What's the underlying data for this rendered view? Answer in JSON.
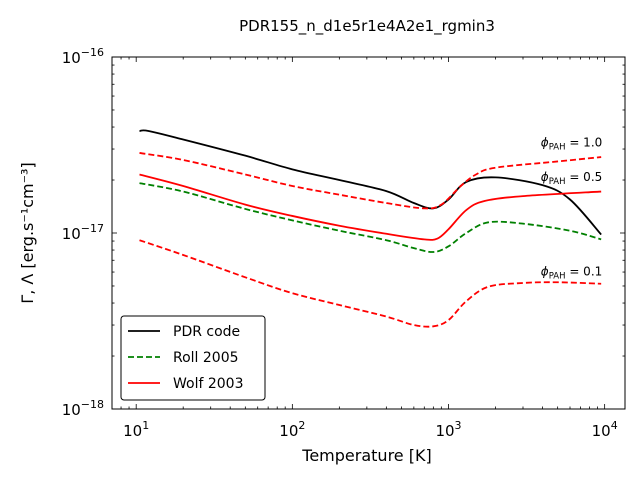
{
  "chart_data": {
    "type": "line",
    "title": "PDR155_n_d1e5r1e4A2e1_rgmin3",
    "xlabel": "Temperature [K]",
    "ylabel": "Γ, Λ [erg.s⁻¹cm⁻³]",
    "x_scale": "log",
    "y_scale": "log",
    "xlim": [
      7,
      13500
    ],
    "ylim": [
      1e-18,
      1e-16
    ],
    "x_ticks": [
      {
        "value": 10,
        "base": "10",
        "exp": "1"
      },
      {
        "value": 100,
        "base": "10",
        "exp": "2"
      },
      {
        "value": 1000,
        "base": "10",
        "exp": "3"
      },
      {
        "value": 10000,
        "base": "10",
        "exp": "4"
      }
    ],
    "y_ticks": [
      {
        "value": 1e-18,
        "base": "10",
        "exp": "−18"
      },
      {
        "value": 1e-17,
        "base": "10",
        "exp": "−17"
      },
      {
        "value": 1e-16,
        "base": "10",
        "exp": "−16"
      }
    ],
    "grid": false,
    "legend": {
      "position": "lower-left",
      "entries": [
        {
          "label": "PDR code",
          "color": "#000000",
          "style": "solid"
        },
        {
          "label": "Roll 2005",
          "color": "#008000",
          "style": "dashed"
        },
        {
          "label": "Wolf 2003",
          "color": "#ff0000",
          "style": "solid"
        }
      ]
    },
    "annotations": [
      {
        "prefix": "ϕ",
        "sub": "PAH",
        "text": " = 1.0",
        "x": 3900,
        "y": 3.1e-17
      },
      {
        "prefix": "ϕ",
        "sub": "PAH",
        "text": " = 0.5",
        "x": 3900,
        "y": 1.98e-17
      },
      {
        "prefix": "ϕ",
        "sub": "PAH",
        "text": " = 0.1",
        "x": 3900,
        "y": 5.75e-18
      }
    ],
    "series": [
      {
        "name": "PDR code",
        "color": "#000000",
        "style": "solid",
        "points": [
          [
            10.5,
            3.8e-17
          ],
          [
            12,
            3.8e-17
          ],
          [
            20,
            3.4e-17
          ],
          [
            50,
            2.75e-17
          ],
          [
            100,
            2.3e-17
          ],
          [
            200,
            2e-17
          ],
          [
            400,
            1.73e-17
          ],
          [
            600,
            1.48e-17
          ],
          [
            800,
            1.38e-17
          ],
          [
            1000,
            1.55e-17
          ],
          [
            1300,
            1.95e-17
          ],
          [
            2000,
            2.07e-17
          ],
          [
            4000,
            1.87e-17
          ],
          [
            6000,
            1.55e-17
          ],
          [
            9500,
            9.8e-18
          ]
        ]
      },
      {
        "color": "#ff0000",
        "style": "dashed",
        "points": [
          [
            10.5,
            2.85e-17
          ],
          [
            20,
            2.6e-17
          ],
          [
            50,
            2.15e-17
          ],
          [
            100,
            1.85e-17
          ],
          [
            200,
            1.65e-17
          ],
          [
            400,
            1.48e-17
          ],
          [
            700,
            1.38e-17
          ],
          [
            900,
            1.45e-17
          ],
          [
            1200,
            1.85e-17
          ],
          [
            1500,
            2.15e-17
          ],
          [
            2000,
            2.35e-17
          ],
          [
            5000,
            2.55e-17
          ],
          [
            9500,
            2.7e-17
          ]
        ]
      },
      {
        "name": "Wolf 2003",
        "color": "#ff0000",
        "style": "solid",
        "points": [
          [
            10.5,
            2.15e-17
          ],
          [
            20,
            1.85e-17
          ],
          [
            50,
            1.45e-17
          ],
          [
            100,
            1.25e-17
          ],
          [
            200,
            1.1e-17
          ],
          [
            400,
            9.9e-18
          ],
          [
            700,
            9.2e-18
          ],
          [
            850,
            9.3e-18
          ],
          [
            1000,
            1.05e-17
          ],
          [
            1300,
            1.35e-17
          ],
          [
            1700,
            1.52e-17
          ],
          [
            3000,
            1.62e-17
          ],
          [
            9500,
            1.72e-17
          ]
        ]
      },
      {
        "name": "Roll 2005",
        "color": "#008000",
        "style": "dashed",
        "points": [
          [
            10.5,
            1.92e-17
          ],
          [
            20,
            1.72e-17
          ],
          [
            50,
            1.37e-17
          ],
          [
            100,
            1.18e-17
          ],
          [
            200,
            1.03e-17
          ],
          [
            400,
            9.1e-18
          ],
          [
            600,
            8.2e-18
          ],
          [
            800,
            7.8e-18
          ],
          [
            1000,
            8.4e-18
          ],
          [
            1300,
            1e-17
          ],
          [
            1800,
            1.15e-17
          ],
          [
            3000,
            1.13e-17
          ],
          [
            6000,
            1.03e-17
          ],
          [
            9500,
            9.2e-18
          ]
        ]
      },
      {
        "color": "#ff0000",
        "style": "dashed",
        "points": [
          [
            10.5,
            9.1e-18
          ],
          [
            20,
            7.5e-18
          ],
          [
            50,
            5.6e-18
          ],
          [
            100,
            4.55e-18
          ],
          [
            200,
            3.9e-18
          ],
          [
            400,
            3.35e-18
          ],
          [
            600,
            3e-18
          ],
          [
            800,
            2.95e-18
          ],
          [
            1000,
            3.2e-18
          ],
          [
            1300,
            4.1e-18
          ],
          [
            1800,
            4.95e-18
          ],
          [
            3000,
            5.2e-18
          ],
          [
            5000,
            5.25e-18
          ],
          [
            9500,
            5.15e-18
          ]
        ]
      }
    ]
  }
}
